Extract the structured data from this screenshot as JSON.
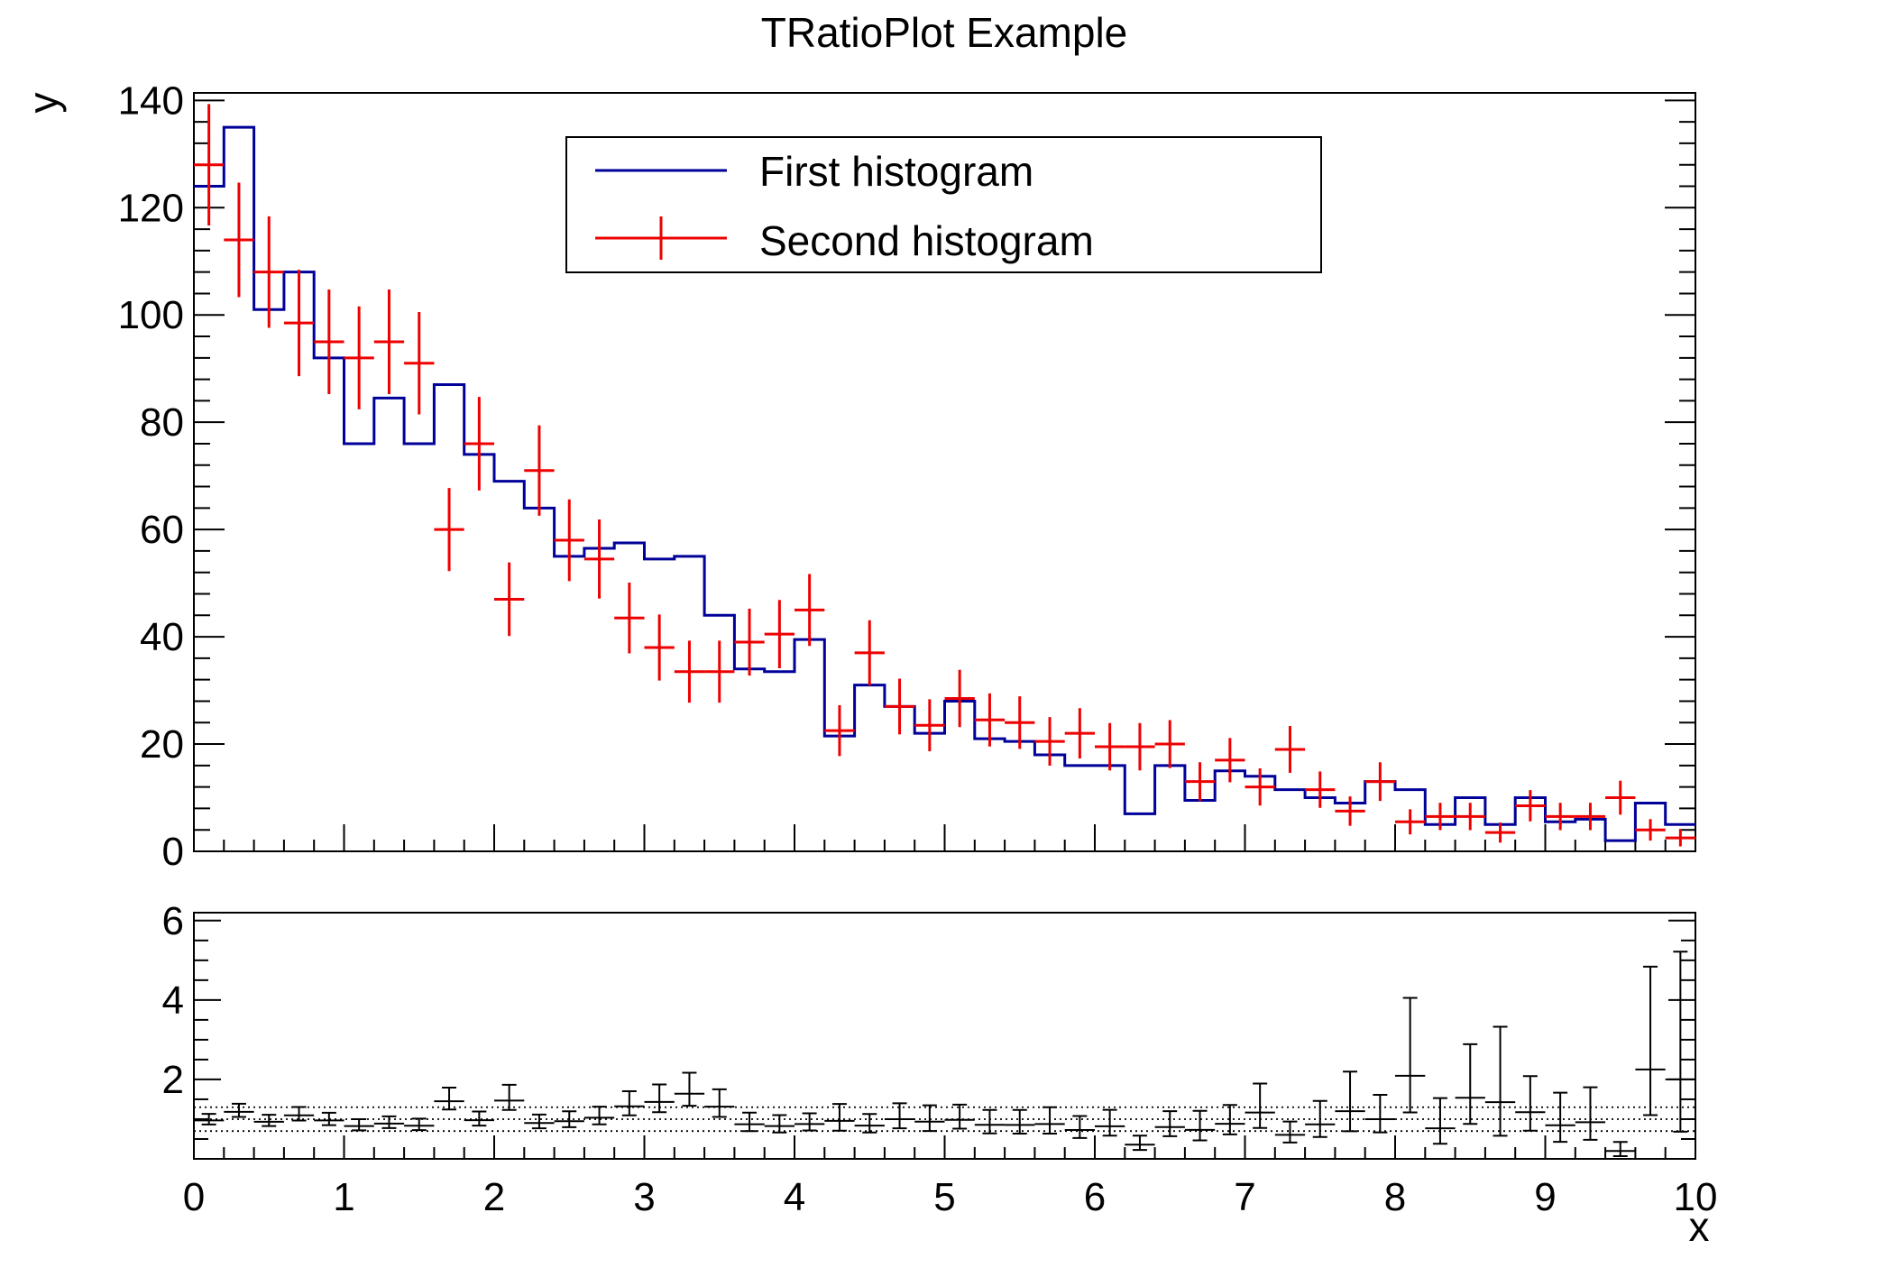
{
  "title": "TRatioPlot Example",
  "colors": {
    "first_histogram": "#000099",
    "second_histogram": "#ee0000",
    "frame": "#000000",
    "background": "#ffffff"
  },
  "legend": {
    "entries": [
      {
        "label": "First histogram",
        "marker": "line",
        "color": "#000099"
      },
      {
        "label": "Second histogram",
        "marker": "cross-errors",
        "color": "#ee0000"
      }
    ]
  },
  "chart_data": {
    "type": "ratio-histogram",
    "title": "TRatioPlot Example",
    "xlabel": "x",
    "ylabel": "y",
    "bins": 50,
    "xmin": 0,
    "xmax": 10,
    "xticks": [
      0,
      1,
      2,
      3,
      4,
      5,
      6,
      7,
      8,
      9,
      10
    ],
    "x_minor_step": 0.2,
    "upper_panel": {
      "ylim": [
        0,
        141.4
      ],
      "yticks": [
        0,
        20,
        40,
        60,
        80,
        100,
        120,
        140
      ],
      "y_minor_step": 4,
      "series": [
        {
          "name": "First histogram",
          "style": "step-line",
          "color": "#000099",
          "values": [
            124,
            135,
            101,
            108,
            92,
            76,
            84.5,
            76,
            87,
            74,
            69,
            64,
            55,
            56.5,
            57.5,
            54.5,
            55,
            44,
            34,
            33.5,
            39.5,
            21.5,
            31,
            27,
            22,
            28,
            21,
            20.5,
            18,
            16,
            16,
            7,
            16,
            9.5,
            15,
            14,
            11.5,
            10,
            9,
            13,
            11.5,
            5,
            10,
            5,
            10,
            5.5,
            6,
            2,
            9,
            5
          ]
        },
        {
          "name": "Second histogram",
          "style": "points-with-errors",
          "color": "#ee0000",
          "errors": "sqrt(N)",
          "values": [
            128,
            114,
            108,
            98.5,
            95,
            92,
            95,
            91,
            60,
            76,
            47,
            71,
            58,
            54.5,
            43.5,
            38,
            33.5,
            33.5,
            39,
            40.5,
            45,
            22.5,
            37,
            27,
            23.5,
            28.5,
            24.5,
            24,
            20.5,
            22,
            19.5,
            19.5,
            20,
            13,
            17,
            12,
            19,
            11.5,
            7.5,
            13,
            5.5,
            6.5,
            6.5,
            3.5,
            8.5,
            6.5,
            6.5,
            10,
            4,
            2.5
          ]
        }
      ]
    },
    "lower_panel": {
      "description": "ratio First/Second with asymmetric errors",
      "ylim": [
        0,
        6.2
      ],
      "yticks": [
        2,
        4,
        6
      ],
      "y_minor_step": 0.5,
      "gridlines_dotted": [
        0.7,
        1.0,
        1.3
      ],
      "ratio_values": [
        0.969,
        1.184,
        0.935,
        1.096,
        0.968,
        0.826,
        0.889,
        0.835,
        1.45,
        0.974,
        1.468,
        0.901,
        0.948,
        1.037,
        1.322,
        1.434,
        1.642,
        1.313,
        0.872,
        0.827,
        0.878,
        0.956,
        0.838,
        1.0,
        0.936,
        0.982,
        0.857,
        0.854,
        0.878,
        0.727,
        0.821,
        0.359,
        0.8,
        0.731,
        0.882,
        1.167,
        0.605,
        0.87,
        1.2,
        1.0,
        2.091,
        0.769,
        1.538,
        1.429,
        1.176,
        0.846,
        0.923,
        0.2,
        2.25,
        2.0
      ]
    }
  }
}
